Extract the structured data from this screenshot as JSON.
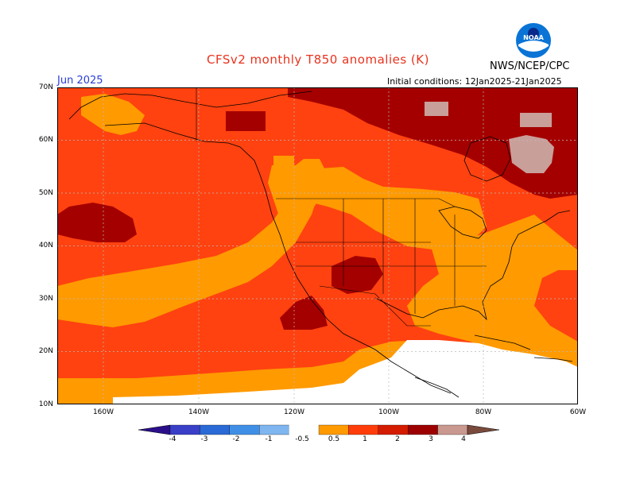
{
  "header": {
    "title": "CFSv2 monthly T850 anomalies (K)",
    "agency": "NWS/NCEP/CPC",
    "logo_text": "NOAA",
    "month": "Jun 2025",
    "initial_conditions": "Initial conditions: 12Jan2025-21Jan2025"
  },
  "axes": {
    "lat_labels": [
      "70N",
      "60N",
      "50N",
      "40N",
      "30N",
      "20N",
      "10N"
    ],
    "lon_labels": [
      "160W",
      "140W",
      "120W",
      "100W",
      "80W",
      "60W"
    ]
  },
  "colorbar": {
    "labels": [
      "-4",
      "-3",
      "-2",
      "-1",
      "-0.5",
      "0.5",
      "1",
      "2",
      "3",
      "4"
    ],
    "colors": [
      "#2b0f8a",
      "#3a3fc8",
      "#2a6ad6",
      "#3f8fe6",
      "#7fb6f0",
      "#ffffff",
      "#ff9a00",
      "#ff3d0a",
      "#d41c00",
      "#9c0000",
      "#c9988f",
      "#7a4b3c"
    ]
  },
  "legend_colors": {
    "anom_0_5_1": "#ff9a00",
    "anom_1_2": "#ff4210",
    "anom_2_3": "#a50000",
    "anom_3_4": "#c99f9a"
  }
}
